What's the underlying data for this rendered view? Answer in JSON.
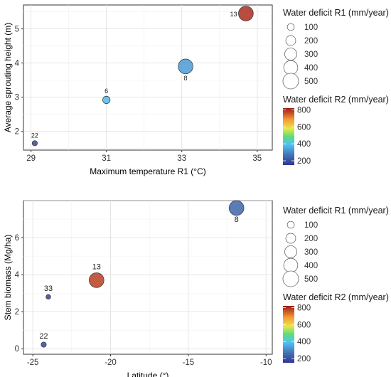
{
  "chart_data": [
    {
      "type": "scatter",
      "title": "",
      "xlabel": "Maximum temperature R1 (°C)",
      "ylabel": "Average sprouting height (m)",
      "xlim": [
        28.8,
        35.4
      ],
      "ylim": [
        1.45,
        5.7
      ],
      "xticks": [
        29,
        31,
        33,
        35
      ],
      "yticks": [
        2,
        3,
        4,
        5
      ],
      "grid": true,
      "points": [
        {
          "label": "22",
          "x": 29.1,
          "y": 1.65,
          "r1": 50,
          "r2": 180
        },
        {
          "label": "6",
          "x": 31.0,
          "y": 2.92,
          "r1": 100,
          "r2": 380
        },
        {
          "label": "8",
          "x": 33.1,
          "y": 3.9,
          "r1": 400,
          "r2": 330
        },
        {
          "label": "13",
          "x": 34.7,
          "y": 5.45,
          "r1": 400,
          "r2": 800
        }
      ]
    },
    {
      "type": "scatter",
      "title": "",
      "xlabel": "Latitude (°)",
      "ylabel": "Stem biomass (Mg/ha)",
      "xlim": [
        -25.6,
        -9.6
      ],
      "ylim": [
        -0.3,
        8.0
      ],
      "xticks": [
        -25,
        -20,
        -15,
        -10
      ],
      "yticks": [
        0,
        2,
        4,
        6
      ],
      "grid": true,
      "points": [
        {
          "label": "22",
          "x": -24.3,
          "y": 0.22,
          "r1": 50,
          "r2": 180
        },
        {
          "label": "33",
          "x": -24.0,
          "y": 2.8,
          "r1": 40,
          "r2": 170
        },
        {
          "label": "13",
          "x": -20.9,
          "y": 3.7,
          "r1": 400,
          "r2": 780
        },
        {
          "label": "8",
          "x": -11.9,
          "y": 7.6,
          "r1": 400,
          "r2": 240
        }
      ]
    }
  ],
  "legends": {
    "size_title": "Water deficit R1 (mm/year)",
    "size_items": [
      {
        "label": "100",
        "value": 100
      },
      {
        "label": "200",
        "value": 200
      },
      {
        "label": "300",
        "value": 300
      },
      {
        "label": "400",
        "value": 400
      },
      {
        "label": "500",
        "value": 500
      }
    ],
    "color_title": "Water deficit R2 (mm/year)",
    "color_ticks": [
      "800",
      "600",
      "400",
      "200"
    ],
    "color_range": [
      150,
      820
    ]
  }
}
